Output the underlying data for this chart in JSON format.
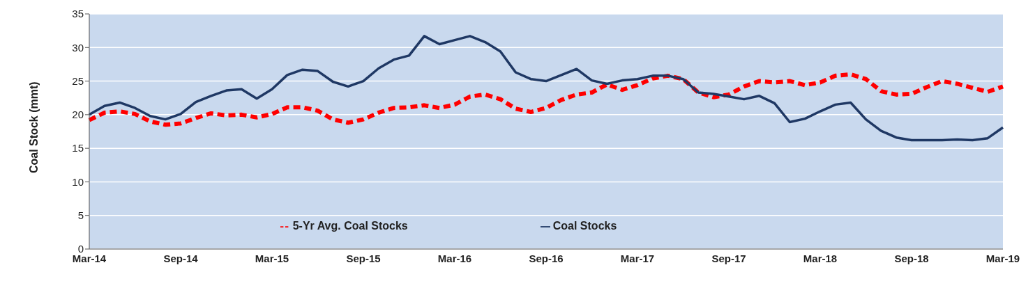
{
  "chart_data": {
    "type": "line",
    "ylabel": "Coal Stock (mmt)",
    "categories": [
      "Mar-14",
      null,
      null,
      null,
      null,
      null,
      "Sep-14",
      null,
      null,
      null,
      null,
      null,
      "Mar-15",
      null,
      null,
      null,
      null,
      null,
      "Sep-15",
      null,
      null,
      null,
      null,
      null,
      "Mar-16",
      null,
      null,
      null,
      null,
      null,
      "Sep-16",
      null,
      null,
      null,
      null,
      null,
      "Mar-17",
      null,
      null,
      null,
      null,
      null,
      "Sep-17",
      null,
      null,
      null,
      null,
      null,
      "Mar-18",
      null,
      null,
      null,
      null,
      null,
      "Sep-18",
      null,
      null,
      null,
      null,
      null,
      "Mar-19"
    ],
    "series": [
      {
        "name": "5-Yr Avg. Coal Stocks",
        "color": "#ff0000",
        "line_style": "dashed",
        "values": [
          19.2,
          20.3,
          20.5,
          20.1,
          19.0,
          18.5,
          18.7,
          19.5,
          20.2,
          19.9,
          20.0,
          19.6,
          20.1,
          21.1,
          21.1,
          20.6,
          19.3,
          18.8,
          19.3,
          20.3,
          21.0,
          21.1,
          21.4,
          21.0,
          21.5,
          22.7,
          23.0,
          22.3,
          20.9,
          20.4,
          21.0,
          22.2,
          23.0,
          23.3,
          24.5,
          23.7,
          24.4,
          25.4,
          25.8,
          25.3,
          23.3,
          22.6,
          23.0,
          24.2,
          25.0,
          24.8,
          25.0,
          24.4,
          24.8,
          25.8,
          26.0,
          25.3,
          23.5,
          23.0,
          23.1,
          24.1,
          25.0,
          24.6,
          24.0,
          23.4,
          24.2
        ]
      },
      {
        "name": "Coal Stocks",
        "color": "#1f3864",
        "line_style": "solid",
        "values": [
          20.0,
          21.3,
          21.8,
          21.0,
          19.8,
          19.3,
          20.1,
          21.9,
          22.8,
          23.6,
          23.8,
          22.4,
          23.8,
          25.9,
          26.7,
          26.5,
          24.9,
          24.2,
          25.0,
          26.9,
          28.2,
          28.8,
          31.7,
          30.5,
          31.1,
          31.7,
          30.8,
          29.4,
          26.3,
          25.3,
          25.0,
          25.9,
          26.8,
          25.1,
          24.6,
          25.1,
          25.3,
          25.8,
          25.8,
          25.3,
          23.3,
          23.1,
          22.7,
          22.3,
          22.8,
          21.7,
          18.9,
          19.4,
          20.5,
          21.5,
          21.8,
          19.3,
          17.6,
          16.6,
          16.2,
          16.2,
          16.2,
          16.3,
          16.2,
          16.5,
          18.1
        ]
      }
    ],
    "ylim": [
      0,
      35
    ],
    "yticks": [
      0,
      5,
      10,
      15,
      20,
      25,
      30,
      35
    ],
    "grid": "y",
    "legend": "bottom",
    "marker": "none"
  }
}
